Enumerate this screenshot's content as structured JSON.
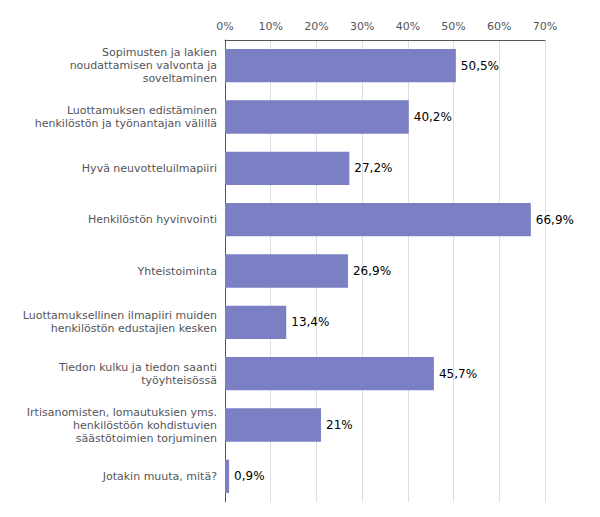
{
  "chart_data": {
    "type": "bar",
    "orientation": "horizontal",
    "categories": [
      "Sopimusten ja lakien\nnoudattamisen valvonta ja\nsoveltaminen",
      "Luottamuksen edistäminen\nhenkilöstön ja työnantajan välillä",
      "Hyvä neuvotteluilmapiiri",
      "Henkilöstön hyvinvointi",
      "Yhteistoiminta",
      "Luottamuksellinen ilmapiiri muiden\nhenkilöstön edustajien kesken",
      "Tiedon kulku ja tiedon saanti\ntyöyhteisössä",
      "Irtisanomisten, lomautuksien yms.\nhenkilöstöön kohdistuvien\nsäästötoimien torjuminen",
      "Jotakin muuta, mitä?"
    ],
    "values": [
      50.5,
      40.2,
      27.2,
      66.9,
      26.9,
      13.4,
      45.7,
      21.0,
      0.9
    ],
    "value_labels": [
      "50,5%",
      "40,2%",
      "27,2%",
      "66,9%",
      "26,9%",
      "13,4%",
      "45,7%",
      "21%",
      "0,9%"
    ],
    "data_labels": true,
    "color": "#7b7fc4",
    "xlim": [
      0,
      70
    ],
    "xticks": [
      {
        "value": 0,
        "label": "0%"
      },
      {
        "value": 10,
        "label": "10%"
      },
      {
        "value": 20,
        "label": "20%"
      },
      {
        "value": 30,
        "label": "30%"
      },
      {
        "value": 40,
        "label": "40%"
      },
      {
        "value": 50,
        "label": "50%"
      },
      {
        "value": 60,
        "label": "60%"
      },
      {
        "value": 70,
        "label": "70%"
      }
    ],
    "grid": true
  }
}
